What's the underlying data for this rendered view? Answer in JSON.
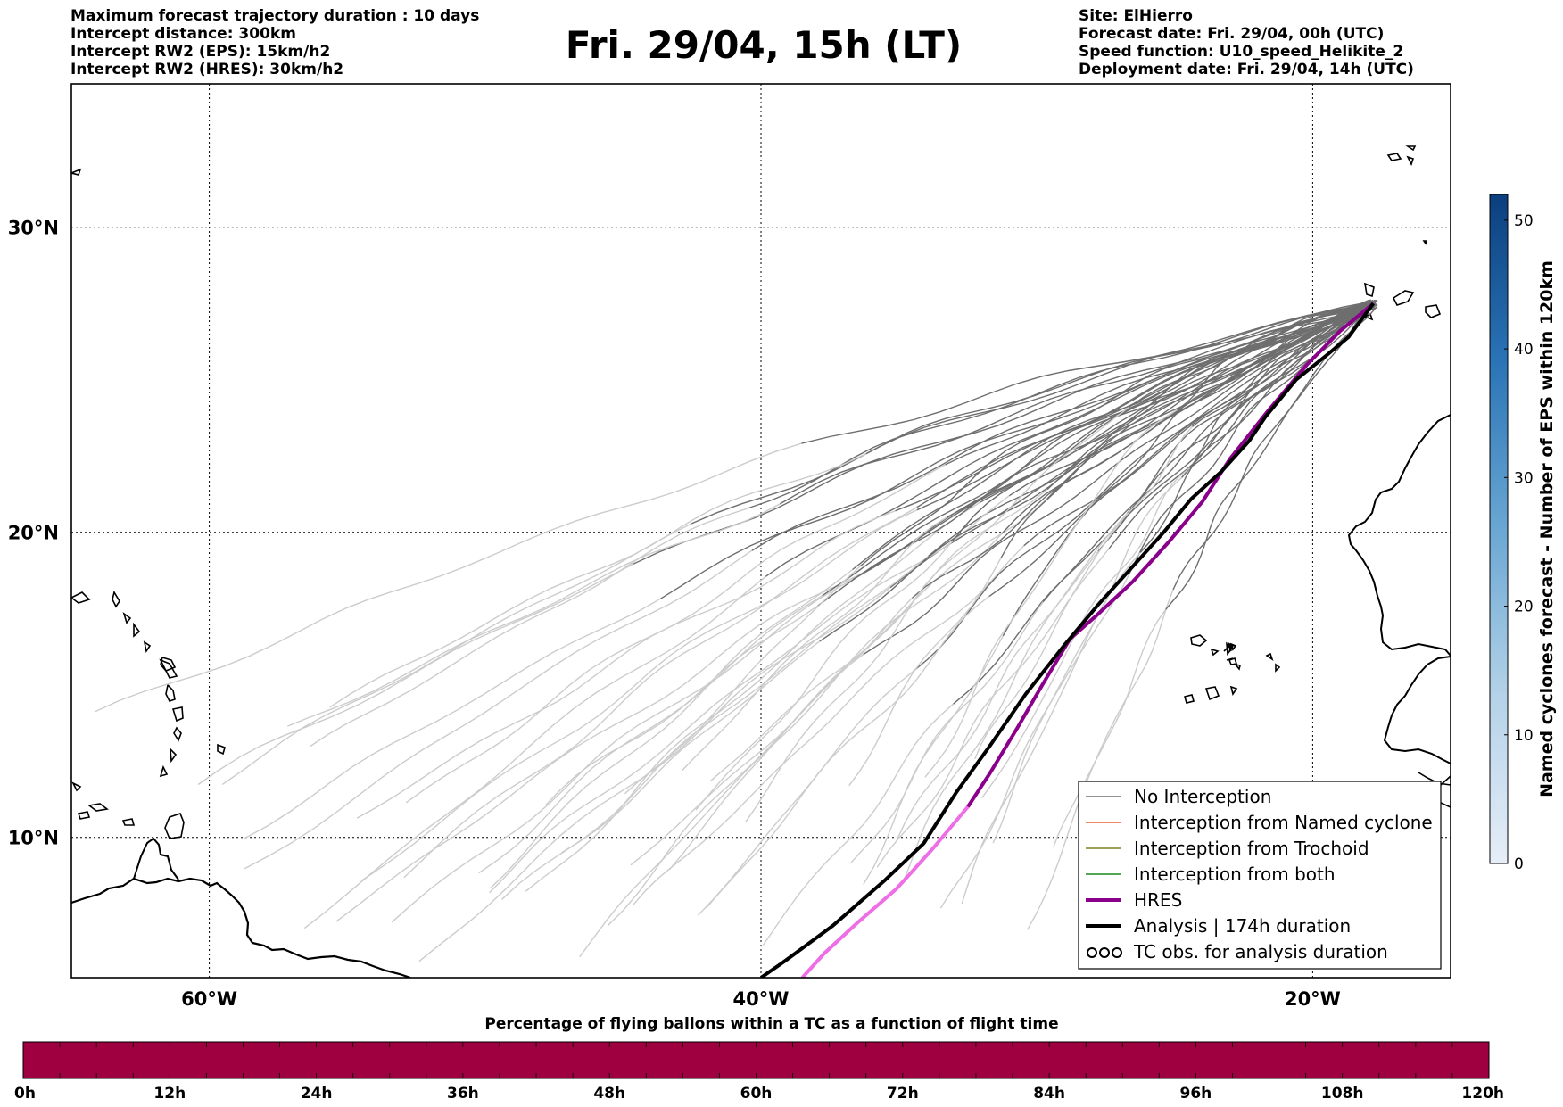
{
  "header": {
    "left_lines": [
      "Maximum forecast trajectory duration : 10 days",
      "Intercept distance: 300km",
      "Intercept RW2 (EPS):  15km/h2",
      "Intercept RW2 (HRES): 30km/h2"
    ],
    "title": "Fri. 29/04, 15h (LT)",
    "right_lines": [
      "Site: ElHierro",
      "Forecast date: Fri. 29/04, 00h (UTC)",
      "Speed function: U10_speed_Helikite_2",
      "Deployment date: Fri. 29/04, 14h (UTC)"
    ]
  },
  "map": {
    "lon_range": [
      -65,
      -15
    ],
    "lat_range": [
      5.4,
      34.7
    ],
    "lon_ticks": [
      {
        "value": -60,
        "label": "60°W"
      },
      {
        "value": -40,
        "label": "40°W"
      },
      {
        "value": -20,
        "label": "20°W"
      }
    ],
    "lat_ticks": [
      {
        "value": 10,
        "label": "10°N"
      },
      {
        "value": 20,
        "label": "20°N"
      },
      {
        "value": 30,
        "label": "30°N"
      }
    ],
    "gridlines": "dotted",
    "deployment_site": {
      "lon": -17.8,
      "lat": 27.5
    }
  },
  "chart_data": {
    "type": "map-trajectories",
    "colors": {
      "no_interception_dark": "#6e6e6e",
      "no_interception_light": "#cccccc",
      "named_cyclone": "#e8602c",
      "trochoid": "#808020",
      "both": "#1a8a1a",
      "hres": "#8b008b",
      "hres_late": "#ee6ee6",
      "analysis": "#000000"
    },
    "hres_path": [
      [
        -17.8,
        27.5
      ],
      [
        -19,
        26.6
      ],
      [
        -20.2,
        25.5
      ],
      [
        -21.6,
        24
      ],
      [
        -23,
        22.4
      ],
      [
        -24,
        21
      ],
      [
        -25.2,
        19.7
      ],
      [
        -26.5,
        18.4
      ],
      [
        -27.8,
        17.3
      ],
      [
        -28.8,
        16.5
      ],
      [
        -29.8,
        15
      ],
      [
        -30.7,
        13.6
      ],
      [
        -31.7,
        12.1
      ],
      [
        -32.5,
        11
      ],
      [
        -33.8,
        9.6
      ],
      [
        -35.1,
        8.3
      ],
      [
        -36.5,
        7.2
      ],
      [
        -37.7,
        6.2
      ],
      [
        -38.5,
        5.4
      ]
    ],
    "hres_late_from_index": 13,
    "analysis_path": [
      [
        -17.8,
        27.5
      ],
      [
        -18.7,
        26.4
      ],
      [
        -19.5,
        25.8
      ],
      [
        -20.6,
        25
      ],
      [
        -21.7,
        23.8
      ],
      [
        -22.3,
        23
      ],
      [
        -23.3,
        22
      ],
      [
        -24.4,
        21.1
      ],
      [
        -25.4,
        20
      ],
      [
        -26.6,
        18.8
      ],
      [
        -27.8,
        17.6
      ],
      [
        -29,
        16.3
      ],
      [
        -30.4,
        14.7
      ],
      [
        -31.7,
        13
      ],
      [
        -32.9,
        11.5
      ],
      [
        -34.1,
        9.8
      ],
      [
        -35.5,
        8.6
      ],
      [
        -37.4,
        7.1
      ],
      [
        -39.2,
        5.9
      ],
      [
        -40,
        5.4
      ]
    ],
    "eps_members": 50
  },
  "legend": [
    {
      "label": "No Interception",
      "color": "#6e6e6e",
      "style": "thin"
    },
    {
      "label": "Interception from Named cyclone",
      "color": "#e8602c",
      "style": "thin"
    },
    {
      "label": "Interception from Trochoid",
      "color": "#808020",
      "style": "thin"
    },
    {
      "label": "Interception from both",
      "color": "#1a8a1a",
      "style": "thin"
    },
    {
      "label": "HRES",
      "color": "#8b008b",
      "style": "thick"
    },
    {
      "label": "Analysis | 174h duration",
      "color": "#000000",
      "style": "thick"
    },
    {
      "label": "TC obs. for analysis duration",
      "color": "#000000",
      "style": "markers"
    }
  ],
  "colorbar_vertical": {
    "label": "Named cyclones forecast - Number of EPS within 120km",
    "min": 0,
    "max": 52,
    "ticks": [
      "0",
      "10",
      "20",
      "30",
      "40",
      "50"
    ],
    "color_low": "#e6eef8",
    "color_high": "#0b3f7e"
  },
  "colorbar_horizontal": {
    "title": "Percentage of flying ballons within a TC as a function of flight time",
    "ticks": [
      "0h",
      "12h",
      "24h",
      "36h",
      "48h",
      "60h",
      "72h",
      "84h",
      "96h",
      "108h",
      "120h"
    ],
    "fill_color": "#9e0040"
  }
}
